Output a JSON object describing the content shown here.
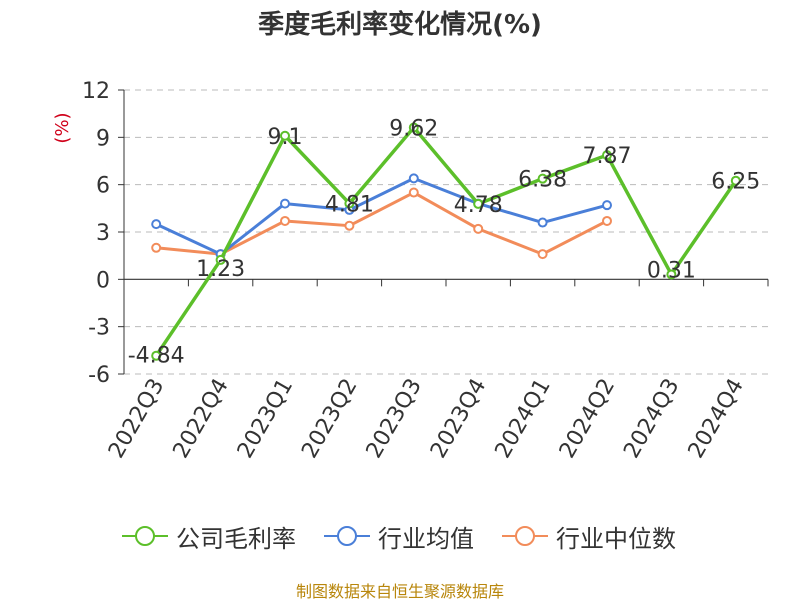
{
  "chart_data": {
    "type": "line",
    "title": "季度毛利率变化情况(%)",
    "ylabel": "(%)",
    "ylim": [
      -6,
      12
    ],
    "yticks": [
      12,
      9,
      6,
      3,
      0,
      -3,
      -6
    ],
    "grid": true,
    "legend_position": "bottom",
    "categories": [
      "2022Q3",
      "2022Q4",
      "2023Q1",
      "2023Q2",
      "2023Q3",
      "2023Q4",
      "2024Q1",
      "2024Q2",
      "2024Q3",
      "2024Q4"
    ],
    "series": [
      {
        "name": "公司毛利率",
        "color": "#5cbf2a",
        "values": [
          -4.84,
          1.23,
          9.1,
          4.81,
          9.62,
          4.78,
          6.38,
          7.87,
          0.31,
          6.25
        ],
        "labels": [
          "-4.84",
          "1.23",
          "9.1",
          "4.81",
          "9.62",
          "4.78",
          "6.38",
          "7.87",
          "0.31",
          "6.25"
        ]
      },
      {
        "name": "行业均值",
        "color": "#4a7fd8",
        "values": [
          3.5,
          1.6,
          4.8,
          4.4,
          6.4,
          4.8,
          3.6,
          4.7,
          null,
          null
        ]
      },
      {
        "name": "行业中位数",
        "color": "#f28c5a",
        "values": [
          2.0,
          1.6,
          3.7,
          3.4,
          5.5,
          3.2,
          1.6,
          3.7,
          null,
          null
        ]
      }
    ]
  },
  "footer": {
    "source": "制图数据来自恒生聚源数据库"
  }
}
